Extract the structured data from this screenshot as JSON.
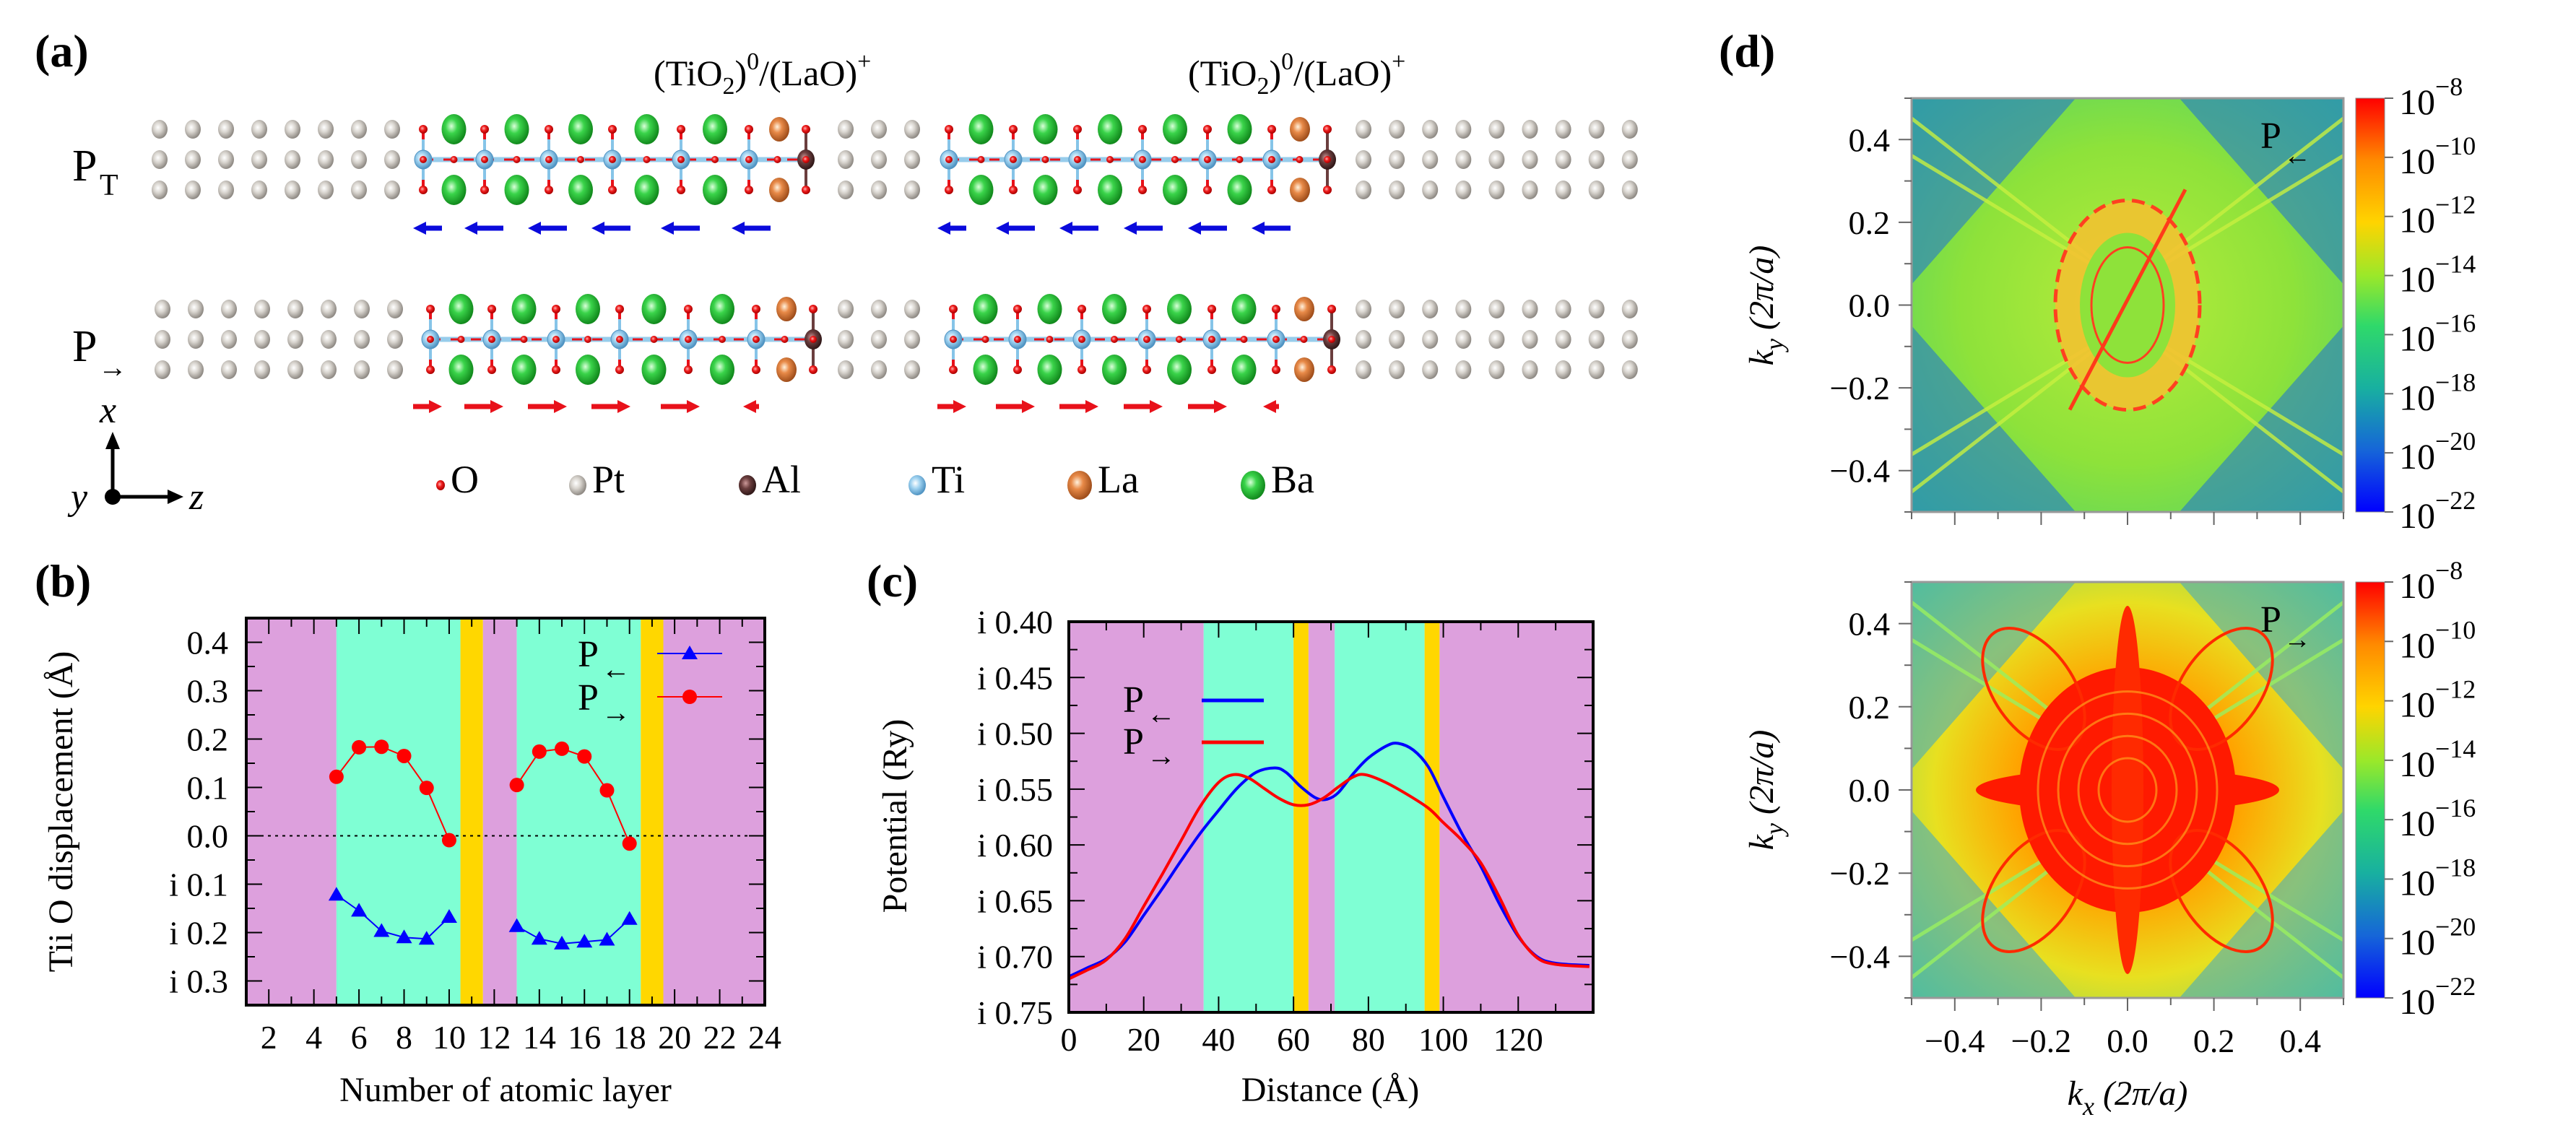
{
  "figure": {
    "panels": [
      "(a)",
      "(b)",
      "(c)",
      "(d)"
    ]
  },
  "panel_a": {
    "label": "(a)",
    "interface_labels": [
      {
        "main": "(TiO",
        "sub": "2",
        "close": ")",
        "sup1": "0",
        "slash": "/(LaO)",
        "sup2": "+"
      },
      {
        "main": "(TiO",
        "sub": "2",
        "close": ")",
        "sup1": "0",
        "slash": "/(LaO)",
        "sup2": "+"
      }
    ],
    "rows": [
      {
        "label_main": "P",
        "label_sub": "T",
        "arrow_direction": "left",
        "arrows": [
          "left",
          "left",
          "left",
          "left",
          "left",
          "left"
        ]
      },
      {
        "label_main": "P",
        "label_sub": "→",
        "arrow_direction": "right",
        "arrows": [
          "right",
          "right",
          "right",
          "right",
          "right",
          "left"
        ]
      }
    ],
    "axes": {
      "up": "x",
      "out": "y",
      "right": "z"
    },
    "legend": [
      {
        "symbol": "O",
        "color": "#e8111a",
        "size": "small"
      },
      {
        "symbol": "Pt",
        "color": "#bdb8b0",
        "size": "medium"
      },
      {
        "symbol": "Al",
        "color": "#5a3434",
        "size": "medium"
      },
      {
        "symbol": "Ti",
        "color": "#86c4e8",
        "size": "medium"
      },
      {
        "symbol": "La",
        "color": "#e07b39",
        "size": "large"
      },
      {
        "symbol": "Ba",
        "color": "#2cc43a",
        "size": "large"
      }
    ],
    "colors": {
      "arrow_left": "#0a0adc",
      "arrow_right": "#e8111a",
      "bond_ti": "#86c4e8",
      "bond_o": "#e8111a"
    }
  },
  "colors": {
    "region_pt": "#dda0dd",
    "region_bto": "#7fffd4",
    "region_interface": "#ffd700",
    "p_left": "#0000ff",
    "p_right": "#ff0000"
  },
  "chart_data": [
    {
      "id": "b",
      "panel_label": "(b)",
      "type": "line",
      "title": "",
      "xlabel": "Number of atomic layer",
      "ylabel": "Ti–O displacement (Å)",
      "ylabel_rendered": "Tii O displacement (Å)",
      "xlim": [
        1,
        24
      ],
      "ylim": [
        -0.35,
        0.45
      ],
      "xticks": [
        2,
        4,
        6,
        8,
        10,
        12,
        14,
        16,
        18,
        20,
        22,
        24
      ],
      "xtick_labels": [
        "2",
        "4",
        "6",
        "8",
        "10",
        "12",
        "14",
        "16",
        "18",
        "20",
        "22",
        "24"
      ],
      "yticks": [
        0.4,
        0.3,
        0.2,
        0.1,
        0.0,
        -0.1,
        -0.2,
        -0.3
      ],
      "ytick_labels": [
        "0.4",
        "0.3",
        "0.2",
        "0.1",
        "0.0",
        "i 0.1",
        "i 0.2",
        "i 0.3"
      ],
      "zero_line": true,
      "regions": [
        {
          "from": 1,
          "to": 5,
          "kind": "region_pt"
        },
        {
          "from": 5,
          "to": 10.5,
          "kind": "region_bto"
        },
        {
          "from": 10.5,
          "to": 11.5,
          "kind": "region_interface"
        },
        {
          "from": 11.5,
          "to": 13,
          "kind": "region_pt"
        },
        {
          "from": 13,
          "to": 18.5,
          "kind": "region_bto"
        },
        {
          "from": 18.5,
          "to": 19.5,
          "kind": "region_interface"
        },
        {
          "from": 19.5,
          "to": 24,
          "kind": "region_pt"
        }
      ],
      "legend": {
        "placement": "top-right",
        "entries": [
          {
            "main": "P",
            "sub": "←",
            "marker": "triangle",
            "color": "#0000ff"
          },
          {
            "main": "P",
            "sub": "→",
            "marker": "circle",
            "color": "#ff0000"
          }
        ]
      },
      "series": [
        {
          "name": "P←",
          "marker": "triangle",
          "color": "#0000ff",
          "segments": [
            {
              "x": [
                5,
                6,
                7,
                8,
                9,
                10
              ],
              "y": [
                -0.122,
                -0.155,
                -0.197,
                -0.21,
                -0.213,
                -0.168
              ]
            },
            {
              "x": [
                13,
                14,
                15,
                16,
                17,
                18
              ],
              "y": [
                -0.187,
                -0.213,
                -0.223,
                -0.219,
                -0.215,
                -0.172
              ]
            }
          ]
        },
        {
          "name": "P→",
          "marker": "circle",
          "color": "#ff0000",
          "segments": [
            {
              "x": [
                5,
                6,
                7,
                8,
                9,
                10
              ],
              "y": [
                0.122,
                0.183,
                0.184,
                0.165,
                0.099,
                -0.009
              ]
            },
            {
              "x": [
                13,
                14,
                15,
                16,
                17,
                18
              ],
              "y": [
                0.105,
                0.174,
                0.18,
                0.164,
                0.094,
                -0.016
              ]
            }
          ]
        }
      ]
    },
    {
      "id": "c",
      "panel_label": "(c)",
      "type": "line",
      "title": "",
      "xlabel": "Distance (Å)",
      "ylabel": "Potential (Ry)",
      "xlim": [
        0,
        140
      ],
      "ylim": [
        -0.75,
        -0.4
      ],
      "xticks": [
        0,
        20,
        40,
        60,
        80,
        100,
        120
      ],
      "xtick_labels": [
        "0",
        "20",
        "40",
        "60",
        "80",
        "100",
        "120"
      ],
      "yticks": [
        -0.4,
        -0.45,
        -0.5,
        -0.55,
        -0.6,
        -0.65,
        -0.7,
        -0.75
      ],
      "ytick_labels": [
        "i 0.40",
        "i 0.45",
        "i 0.50",
        "i 0.55",
        "i 0.60",
        "i 0.65",
        "i 0.70",
        "i 0.75"
      ],
      "regions": [
        {
          "from": 0,
          "to": 36,
          "kind": "region_pt"
        },
        {
          "from": 36,
          "to": 60,
          "kind": "region_bto"
        },
        {
          "from": 60,
          "to": 64,
          "kind": "region_interface"
        },
        {
          "from": 64,
          "to": 71,
          "kind": "region_pt"
        },
        {
          "from": 71,
          "to": 95,
          "kind": "region_bto"
        },
        {
          "from": 95,
          "to": 99,
          "kind": "region_interface"
        },
        {
          "from": 99,
          "to": 140,
          "kind": "region_pt"
        }
      ],
      "legend": {
        "placement": "top-left",
        "entries": [
          {
            "main": "P",
            "sub": "←",
            "color": "#0000ff"
          },
          {
            "main": "P",
            "sub": "→",
            "color": "#ff0000"
          }
        ]
      },
      "series": [
        {
          "name": "P←",
          "color": "#0000ff",
          "x": [
            0,
            5,
            10,
            15,
            20,
            25,
            30,
            35,
            40,
            45,
            50,
            55,
            58,
            62,
            66,
            69,
            72,
            76,
            80,
            85,
            88,
            92,
            96,
            100,
            105,
            110,
            115,
            120,
            125,
            130,
            139
          ],
          "y": [
            -0.718,
            -0.71,
            -0.702,
            -0.687,
            -0.663,
            -0.639,
            -0.614,
            -0.59,
            -0.569,
            -0.549,
            -0.535,
            -0.531,
            -0.535,
            -0.548,
            -0.558,
            -0.559,
            -0.553,
            -0.536,
            -0.522,
            -0.511,
            -0.509,
            -0.515,
            -0.53,
            -0.557,
            -0.59,
            -0.619,
            -0.653,
            -0.682,
            -0.7,
            -0.706,
            -0.708
          ]
        },
        {
          "name": "P→",
          "color": "#ff0000",
          "x": [
            0,
            5,
            10,
            15,
            20,
            25,
            30,
            35,
            40,
            44,
            48,
            52,
            56,
            60,
            64,
            68,
            72,
            76,
            79,
            84,
            90,
            96,
            100,
            105,
            110,
            115,
            120,
            125,
            130,
            139
          ],
          "y": [
            -0.72,
            -0.712,
            -0.703,
            -0.684,
            -0.655,
            -0.626,
            -0.596,
            -0.566,
            -0.544,
            -0.537,
            -0.54,
            -0.549,
            -0.558,
            -0.564,
            -0.564,
            -0.558,
            -0.548,
            -0.539,
            -0.537,
            -0.543,
            -0.554,
            -0.567,
            -0.58,
            -0.596,
            -0.616,
            -0.647,
            -0.681,
            -0.701,
            -0.707,
            -0.709
          ]
        }
      ]
    },
    {
      "id": "d-top",
      "panel_label": "(d)",
      "type": "heatmap",
      "annotation": {
        "main": "P",
        "sub": "←"
      },
      "xlabel": "",
      "ylabel": "k_y (2π/a)",
      "ylabel_main": "k",
      "ylabel_sub": "y",
      "ylabel_rest": " (2π/a)",
      "xlim": [
        -0.5,
        0.5
      ],
      "ylim": [
        -0.5,
        0.5
      ],
      "yticks": [
        0.4,
        0.2,
        0.0,
        -0.2,
        -0.4
      ],
      "ytick_labels": [
        "0.4",
        "0.2",
        "0.0",
        "−0.2",
        "−0.4"
      ],
      "colorbar": {
        "scale": "log",
        "min_exp": -22,
        "max_exp": -8,
        "tick_exps": [
          "-8",
          "-10",
          "-12",
          "-14",
          "-16",
          "-18",
          "-20",
          "-22"
        ],
        "colormap": "jet"
      },
      "description": "background ~1e-16 (green), central ring features ~1e-12 (orange/red), blue diagonal wedges ~1e-20"
    },
    {
      "id": "d-bottom",
      "type": "heatmap",
      "annotation": {
        "main": "P",
        "sub": "→"
      },
      "xlabel": "k_x (2π/a)",
      "xlabel_main": "k",
      "xlabel_sub": "x",
      "xlabel_rest": " (2π/a)",
      "ylabel": "k_y (2π/a)",
      "ylabel_main": "k",
      "ylabel_sub": "y",
      "ylabel_rest": " (2π/a)",
      "xlim": [
        -0.5,
        0.5
      ],
      "ylim": [
        -0.5,
        0.5
      ],
      "xticks": [
        -0.4,
        -0.2,
        0.0,
        0.2,
        0.4
      ],
      "xtick_labels": [
        "−0.4",
        "−0.2",
        "0.0",
        "0.2",
        "0.4"
      ],
      "yticks": [
        0.4,
        0.2,
        0.0,
        -0.2,
        -0.4
      ],
      "ytick_labels": [
        "0.4",
        "0.2",
        "0.0",
        "−0.2",
        "−0.4"
      ],
      "colorbar": {
        "scale": "log",
        "min_exp": -22,
        "max_exp": -8,
        "tick_exps": [
          "-8",
          "-10",
          "-12",
          "-14",
          "-16",
          "-18",
          "-20",
          "-22"
        ],
        "colormap": "jet"
      },
      "description": "large saturated red (~1e-8) central flower-like region, orange/yellow surroundings, cyan-blue corners"
    }
  ]
}
